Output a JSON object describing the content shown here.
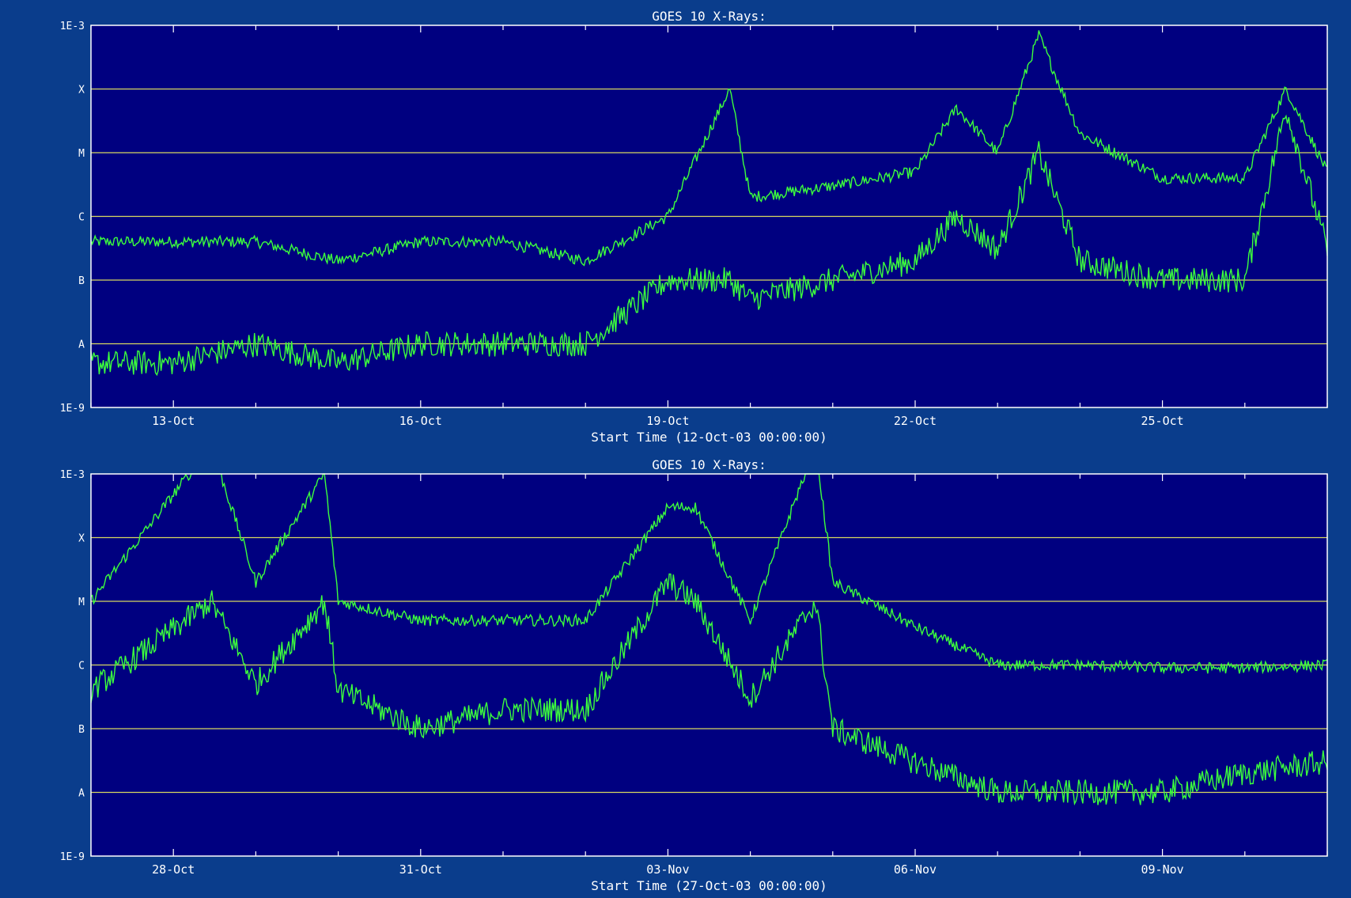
{
  "colors": {
    "page_background": "#0a3d8c",
    "plot_background": "#000080",
    "axis": "#ffffff",
    "reference_lines": "#d8d860",
    "series_line": "#3cff3c"
  },
  "chart_data": [
    {
      "type": "line",
      "title": "GOES 10 X-Rays:",
      "xlabel": "Start Time (12-Oct-03 00:00:00)",
      "ylabel": "",
      "y_scale": "log",
      "ylim": [
        "1E-9",
        "1E-3"
      ],
      "y_tick_labels": [
        "1E-3",
        "X",
        "M",
        "C",
        "B",
        "A",
        "1E-9"
      ],
      "reference_lines_at": [
        "X",
        "M",
        "C",
        "B",
        "A"
      ],
      "xlim": [
        "2003-10-12",
        "2003-10-27"
      ],
      "x_tick_labels": [
        "13-Oct",
        "16-Oct",
        "19-Oct",
        "22-Oct",
        "25-Oct"
      ],
      "grid": false,
      "series": [
        {
          "x": [
            "2003-10-12",
            "2003-10-13",
            "2003-10-14",
            "2003-10-15",
            "2003-10-16",
            "2003-10-17",
            "2003-10-18",
            "2003-10-19",
            "2003-10-19T18:00",
            "2003-10-20",
            "2003-10-21",
            "2003-10-22",
            "2003-10-22T12:00",
            "2003-10-23",
            "2003-10-23T12:00",
            "2003-10-24",
            "2003-10-25",
            "2003-10-26",
            "2003-10-26T12:00",
            "2003-10-27"
          ],
          "values": [
            "B4",
            "B4",
            "B4",
            "B2",
            "B4",
            "B4",
            "B2",
            "C1",
            "X1",
            "C2",
            "C3",
            "C5",
            "M5",
            "M1",
            "X7",
            "M2",
            "C4",
            "C4",
            "X1",
            "C5"
          ]
        },
        {
          "x": [
            "2003-10-12",
            "2003-10-13",
            "2003-10-14",
            "2003-10-15",
            "2003-10-16",
            "2003-10-17",
            "2003-10-18",
            "2003-10-19",
            "2003-10-19T18:00",
            "2003-10-20",
            "2003-10-21",
            "2003-10-22",
            "2003-10-22T12:00",
            "2003-10-23",
            "2003-10-23T12:00",
            "2003-10-24",
            "2003-10-25",
            "2003-10-26",
            "2003-10-26T12:00",
            "2003-10-27"
          ],
          "values": [
            "A0.5",
            "A0.5",
            "A1",
            "A0.5",
            "A1",
            "A1",
            "A1",
            "B1",
            "B1",
            "A5",
            "B1",
            "B2",
            "C1",
            "B3",
            "M1",
            "B2",
            "B1",
            "B1",
            "M5",
            "B3"
          ]
        }
      ]
    },
    {
      "type": "line",
      "title": "GOES 10 X-Rays:",
      "xlabel": "Start Time (27-Oct-03 00:00:00)",
      "ylabel": "",
      "y_scale": "log",
      "ylim": [
        "1E-9",
        "1E-3"
      ],
      "y_tick_labels": [
        "1E-3",
        "X",
        "M",
        "C",
        "B",
        "A",
        "1E-9"
      ],
      "reference_lines_at": [
        "X",
        "M",
        "C",
        "B",
        "A"
      ],
      "xlim": [
        "2003-10-27",
        "2003-11-11"
      ],
      "x_tick_labels": [
        "28-Oct",
        "31-Oct",
        "03-Nov",
        "06-Nov",
        "09-Nov"
      ],
      "grid": false,
      "series": [
        {
          "x": [
            "2003-10-27",
            "2003-10-28T11:00",
            "2003-10-29",
            "2003-10-29T20:00",
            "2003-10-30",
            "2003-10-31",
            "2003-11-01",
            "2003-11-02",
            "2003-11-03",
            "2003-11-03T08:00",
            "2003-11-04",
            "2003-11-04T19:00",
            "2003-11-05",
            "2003-11-06",
            "2003-11-07",
            "2003-11-08",
            "2003-11-09",
            "2003-11-10",
            "2003-11-11"
          ],
          "values": [
            "M1",
            "X28",
            "M2",
            "X10",
            "M1",
            "C5",
            "C5",
            "C5",
            "X3",
            "X3",
            "C5",
            "X28",
            "M2",
            "C4",
            "C1",
            "C1",
            "B9",
            "B9",
            "C1"
          ]
        },
        {
          "x": [
            "2003-10-27",
            "2003-10-28T11:00",
            "2003-10-29",
            "2003-10-29T20:00",
            "2003-10-30",
            "2003-10-31",
            "2003-11-01",
            "2003-11-02",
            "2003-11-03",
            "2003-11-03T08:00",
            "2003-11-04",
            "2003-11-04T19:00",
            "2003-11-05",
            "2003-11-06",
            "2003-11-07",
            "2003-11-08",
            "2003-11-09",
            "2003-11-10",
            "2003-11-11"
          ],
          "values": [
            "B4",
            "M1",
            "B5",
            "M1",
            "B4",
            "B1",
            "B2",
            "B2",
            "M2",
            "M1",
            "B3",
            "M1",
            "B1",
            "A3",
            "A1",
            "A1",
            "A1",
            "A2",
            "A3"
          ]
        }
      ]
    }
  ]
}
